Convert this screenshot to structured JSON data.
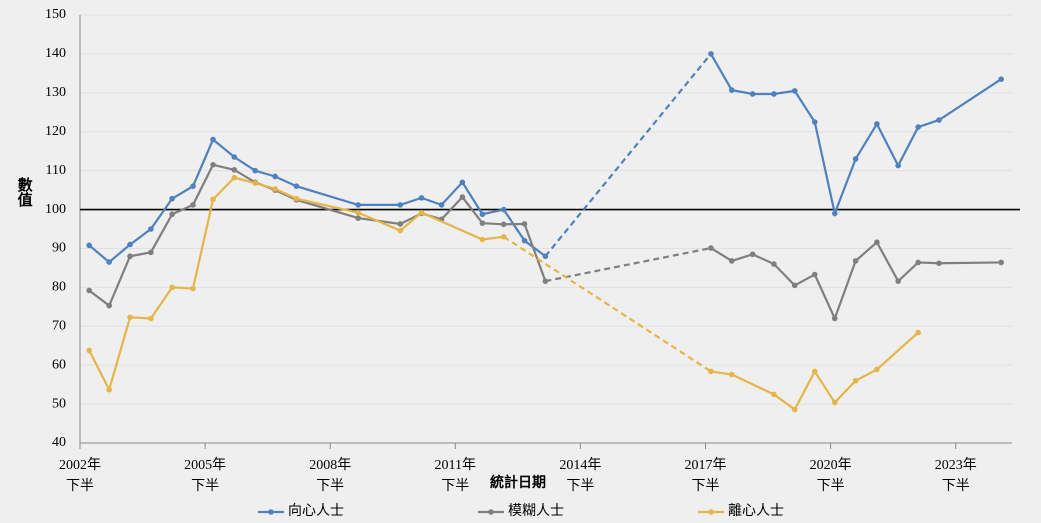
{
  "chart_data": {
    "type": "line",
    "xlabel": "統計日期",
    "ylabel": "數值",
    "xlim": [
      2002.5,
      2024.85
    ],
    "xticks": [
      {
        "value": 2002.5,
        "label": "2002年\n下半"
      },
      {
        "value": 2005.5,
        "label": "2005年\n下半"
      },
      {
        "value": 2008.5,
        "label": "2008年\n下半"
      },
      {
        "value": 2011.5,
        "label": "2011年\n下半"
      },
      {
        "value": 2014.5,
        "label": "2014年\n下半"
      },
      {
        "value": 2017.5,
        "label": "2017年\n下半"
      },
      {
        "value": 2020.5,
        "label": "2020年\n下半"
      },
      {
        "value": 2023.5,
        "label": "2023年\n下半"
      }
    ],
    "ylim": [
      40,
      150
    ],
    "yticks": [
      40,
      50,
      60,
      70,
      80,
      90,
      100,
      110,
      120,
      130,
      140,
      150
    ],
    "grid": true,
    "reference_line": 100,
    "legend": "bottom",
    "series": [
      {
        "name": "向心人士",
        "color": "#4f81bd",
        "dashed_after": 19,
        "x": [
          2002.72,
          2003.2,
          2003.7,
          2004.2,
          2004.71,
          2005.21,
          2005.69,
          2006.2,
          2006.7,
          2007.18,
          2007.69,
          2009.17,
          2010.18,
          2010.69,
          2011.17,
          2011.67,
          2012.15,
          2012.66,
          2013.16,
          2013.66,
          2017.63,
          2018.13,
          2018.63,
          2019.14,
          2019.64,
          2020.12,
          2020.6,
          2021.1,
          2021.61,
          2022.12,
          2022.6,
          2023.1,
          2024.59
        ],
        "values": [
          90.8,
          86.5,
          91,
          95,
          102.8,
          106,
          118,
          113.5,
          110,
          108.5,
          106,
          101.2,
          101.2,
          103,
          101.2,
          107,
          98.8,
          100,
          92,
          88,
          140,
          130.7,
          129.7,
          129.7,
          130.5,
          122.5,
          99,
          113,
          122,
          111.3,
          121.2,
          123,
          133.5
        ]
      },
      {
        "name": "模糊人士",
        "color": "#7f7f7f",
        "dashed_after": 19,
        "x": [
          2002.72,
          2003.2,
          2003.7,
          2004.2,
          2004.71,
          2005.21,
          2005.69,
          2006.2,
          2006.7,
          2007.18,
          2007.69,
          2009.17,
          2010.18,
          2010.69,
          2011.17,
          2011.67,
          2012.15,
          2012.66,
          2013.16,
          2013.66,
          2017.63,
          2018.13,
          2018.63,
          2019.14,
          2019.64,
          2020.12,
          2020.6,
          2021.1,
          2021.61,
          2022.12,
          2022.6,
          2023.1,
          2024.59
        ],
        "values": [
          79.2,
          75.3,
          88,
          89,
          98.8,
          101.2,
          111.5,
          110.2,
          107,
          105,
          102.5,
          97.8,
          96.3,
          99,
          97.5,
          103.2,
          96.5,
          96.2,
          96.3,
          81.6,
          90.1,
          86.8,
          88.5,
          86,
          80.5,
          83.3,
          72,
          86.8,
          91.6,
          81.6,
          86.4,
          86.2,
          86.4
        ]
      },
      {
        "name": "離心人士",
        "color": "#e6b54a",
        "dashed_after": 15,
        "x": [
          2002.72,
          2003.2,
          2003.7,
          2004.2,
          2004.71,
          2005.21,
          2005.69,
          2006.2,
          2006.7,
          2007.18,
          2007.69,
          2009.17,
          2010.18,
          2010.69,
          2012.15,
          2012.66,
          2017.63,
          2018.13,
          2019.14,
          2019.64,
          2020.12,
          2020.6,
          2021.1,
          2021.61,
          2022.6
        ],
        "values": [
          63.8,
          53.7,
          72.3,
          72,
          80,
          79.7,
          102.6,
          108.2,
          106.8,
          105.3,
          102.8,
          99.2,
          94.6,
          99.2,
          92.3,
          93,
          58.4,
          57.6,
          52.5,
          48.6,
          58.4,
          50.4,
          56,
          58.9,
          68.4
        ]
      }
    ]
  }
}
